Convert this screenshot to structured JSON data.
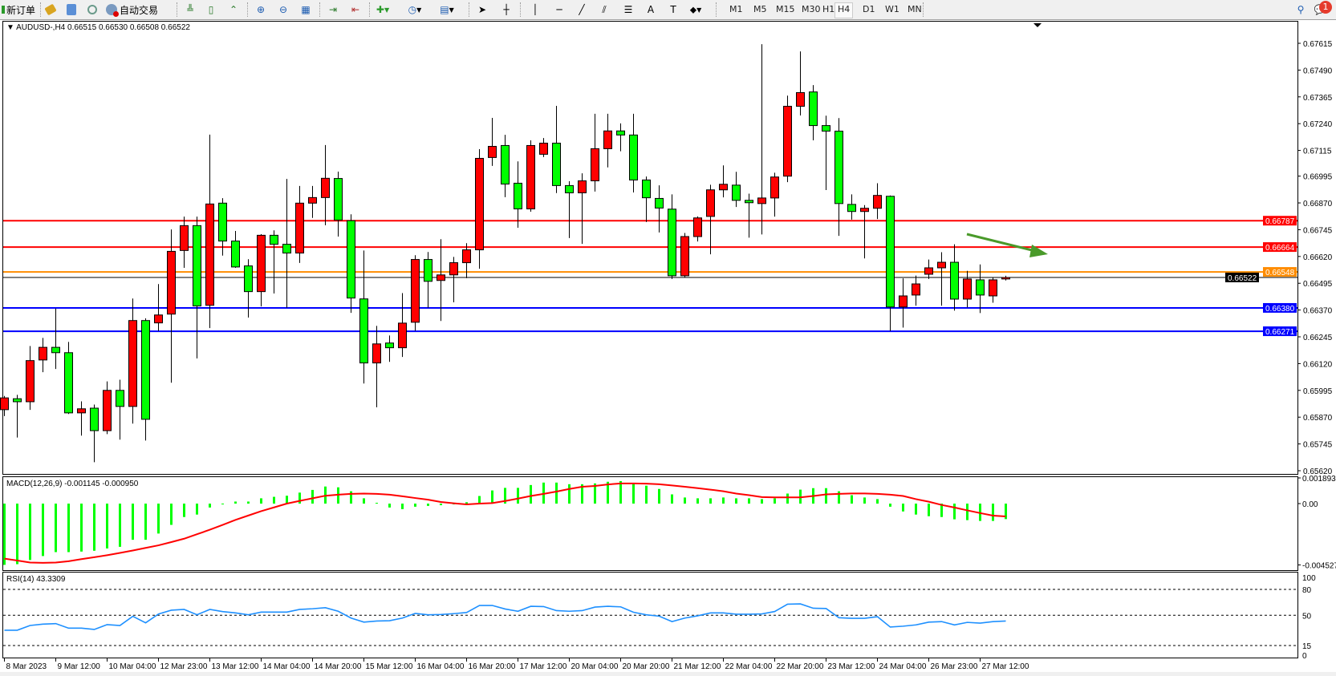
{
  "toolbar": {
    "new_order_label": "新订单",
    "auto_trading_label": "自动交易",
    "icons": [
      "new-order-icon",
      "market-watch-icon",
      "data-window-icon",
      "navigator-icon",
      "signals-icon",
      "auto-trading-icon",
      "bar-chart-icon",
      "candlestick-icon",
      "line-chart-icon",
      "zoom-in-icon",
      "zoom-out-icon",
      "tile-windows-icon",
      "auto-scroll-icon",
      "chart-shift-icon",
      "indicators-icon",
      "periods-icon",
      "templates-icon",
      "cursor-icon",
      "crosshair-icon",
      "vertical-line-icon",
      "horizontal-line-icon",
      "trendline-icon",
      "equidistant-channel-icon",
      "fibonacci-icon",
      "text-icon",
      "text-label-icon",
      "arrows-icon"
    ],
    "timeframes": [
      "M1",
      "M5",
      "M15",
      "M30",
      "H1",
      "H4",
      "D1",
      "W1",
      "MN"
    ],
    "active_timeframe": "H4",
    "notification_count": "1"
  },
  "main_panel": {
    "title": "AUDUSD-,H4  0.66515 0.66530 0.66508 0.66522",
    "price_ticks": [
      "0.67615",
      "0.67490",
      "0.67365",
      "0.67240",
      "0.67115",
      "0.66995",
      "0.66870",
      "0.66745",
      "0.66620",
      "0.66495",
      "0.66370",
      "0.66245",
      "0.66120",
      "0.65995",
      "0.65870",
      "0.65745",
      "0.65620"
    ],
    "horizontal_lines": [
      {
        "price": 0.66787,
        "label": "0.66787",
        "color": "#ff0000"
      },
      {
        "price": 0.66664,
        "label": "0.66664",
        "color": "#ff0000"
      },
      {
        "price": 0.66548,
        "label": "0.66548",
        "color": "#ff8c00"
      },
      {
        "price": 0.6638,
        "label": "0.66380",
        "color": "#0000ff"
      },
      {
        "price": 0.66271,
        "label": "0.66271",
        "color": "#0000ff"
      }
    ],
    "bid_line": {
      "price": 0.66522,
      "label": "0.66522",
      "color": "#000000"
    },
    "arrow_color": "#4a9a2a",
    "bull_color": "#ff0000",
    "bear_color": "#00ff00"
  },
  "macd_panel": {
    "title": "MACD(12,26,9) -0.001145 -0.000950",
    "ticks": [
      "0.001893",
      "0.00",
      "-0.004527"
    ],
    "histogram_color": "#00ff00",
    "signal_color": "#ff0000"
  },
  "rsi_panel": {
    "title": "RSI(14) 43.3309",
    "ticks": [
      "100",
      "80",
      "50",
      "15",
      "0"
    ],
    "levels": [
      80,
      50,
      15
    ],
    "line_color": "#1e90ff"
  },
  "time_labels": [
    "8 Mar 2023",
    "9 Mar 12:00",
    "10 Mar 04:00",
    "12 Mar 23:00",
    "13 Mar 12:00",
    "14 Mar 04:00",
    "14 Mar 20:00",
    "15 Mar 12:00",
    "16 Mar 04:00",
    "16 Mar 20:00",
    "17 Mar 12:00",
    "20 Mar 04:00",
    "20 Mar 20:00",
    "21 Mar 12:00",
    "22 Mar 04:00",
    "22 Mar 20:00",
    "23 Mar 12:00",
    "24 Mar 04:00",
    "26 Mar 23:00",
    "27 Mar 12:00"
  ],
  "chart_data": {
    "type": "candlestick",
    "symbol": "AUDUSD-",
    "timeframe": "H4",
    "ylim": [
      0.6562,
      0.67615
    ],
    "ohlc": [
      [
        0.65905,
        0.65969,
        0.65875,
        0.6596
      ],
      [
        0.65956,
        0.65974,
        0.65775,
        0.65942
      ],
      [
        0.65942,
        0.66202,
        0.65904,
        0.66134
      ],
      [
        0.66137,
        0.6624,
        0.6608,
        0.66196
      ],
      [
        0.66196,
        0.66377,
        0.66095,
        0.66171
      ],
      [
        0.66171,
        0.66221,
        0.65885,
        0.6589
      ],
      [
        0.6589,
        0.65944,
        0.65784,
        0.65909
      ],
      [
        0.65912,
        0.65929,
        0.6566,
        0.65807
      ],
      [
        0.65807,
        0.66037,
        0.65791,
        0.65995
      ],
      [
        0.65995,
        0.66045,
        0.65765,
        0.6592
      ],
      [
        0.6592,
        0.66424,
        0.6584,
        0.66321
      ],
      [
        0.66321,
        0.66331,
        0.65761,
        0.6586
      ],
      [
        0.6631,
        0.66491,
        0.66272,
        0.66347
      ],
      [
        0.66351,
        0.66746,
        0.66031,
        0.66644
      ],
      [
        0.66648,
        0.66806,
        0.66567,
        0.66764
      ],
      [
        0.66764,
        0.66806,
        0.66144,
        0.66389
      ],
      [
        0.66392,
        0.67189,
        0.66286,
        0.66865
      ],
      [
        0.66869,
        0.66892,
        0.66624,
        0.66692
      ],
      [
        0.66692,
        0.66739,
        0.66567,
        0.66571
      ],
      [
        0.66576,
        0.66607,
        0.66335,
        0.66456
      ],
      [
        0.66456,
        0.66724,
        0.66387,
        0.66719
      ],
      [
        0.66719,
        0.66742,
        0.66447,
        0.66677
      ],
      [
        0.66677,
        0.66982,
        0.66381,
        0.66636
      ],
      [
        0.66636,
        0.66949,
        0.6659,
        0.66869
      ],
      [
        0.66869,
        0.66949,
        0.668,
        0.66895
      ],
      [
        0.66895,
        0.6714,
        0.66766,
        0.66985
      ],
      [
        0.66984,
        0.67016,
        0.66713,
        0.6679
      ],
      [
        0.66787,
        0.66817,
        0.66357,
        0.66426
      ],
      [
        0.66422,
        0.66648,
        0.66027,
        0.66123
      ],
      [
        0.66123,
        0.66296,
        0.65916,
        0.66212
      ],
      [
        0.66216,
        0.66251,
        0.66128,
        0.66194
      ],
      [
        0.66194,
        0.66449,
        0.66151,
        0.66309
      ],
      [
        0.66313,
        0.66626,
        0.66273,
        0.66606
      ],
      [
        0.66606,
        0.66641,
        0.66381,
        0.66504
      ],
      [
        0.66508,
        0.66701,
        0.66319,
        0.66534
      ],
      [
        0.66534,
        0.66618,
        0.66406,
        0.66591
      ],
      [
        0.66591,
        0.66682,
        0.66519,
        0.66651
      ],
      [
        0.66651,
        0.67121,
        0.66563,
        0.67078
      ],
      [
        0.67082,
        0.67267,
        0.67043,
        0.67134
      ],
      [
        0.67138,
        0.67188,
        0.66897,
        0.66958
      ],
      [
        0.66962,
        0.67064,
        0.66754,
        0.66842
      ],
      [
        0.66842,
        0.67162,
        0.66829,
        0.67138
      ],
      [
        0.67097,
        0.67173,
        0.67084,
        0.67149
      ],
      [
        0.67149,
        0.67323,
        0.66916,
        0.66951
      ],
      [
        0.66951,
        0.66971,
        0.66706,
        0.66917
      ],
      [
        0.66917,
        0.67008,
        0.66679,
        0.66973
      ],
      [
        0.66973,
        0.67286,
        0.66923,
        0.67123
      ],
      [
        0.67123,
        0.67286,
        0.67036,
        0.67206
      ],
      [
        0.67206,
        0.67241,
        0.67111,
        0.67187
      ],
      [
        0.67187,
        0.67286,
        0.66919,
        0.66977
      ],
      [
        0.66977,
        0.66993,
        0.66781,
        0.66894
      ],
      [
        0.66891,
        0.66952,
        0.66732,
        0.66846
      ],
      [
        0.66841,
        0.6691,
        0.66515,
        0.6653
      ],
      [
        0.6653,
        0.6673,
        0.6652,
        0.66713
      ],
      [
        0.66713,
        0.66807,
        0.6669,
        0.668
      ],
      [
        0.66807,
        0.66955,
        0.6663,
        0.66931
      ],
      [
        0.66931,
        0.67045,
        0.66896,
        0.66957
      ],
      [
        0.66953,
        0.67015,
        0.66851,
        0.66882
      ],
      [
        0.66882,
        0.66913,
        0.66708,
        0.66871
      ],
      [
        0.66867,
        0.67611,
        0.66723,
        0.66893
      ],
      [
        0.66893,
        0.67011,
        0.66806,
        0.66991
      ],
      [
        0.66995,
        0.67371,
        0.66967,
        0.67321
      ],
      [
        0.67321,
        0.67577,
        0.67278,
        0.67385
      ],
      [
        0.67388,
        0.6742,
        0.67162,
        0.67231
      ],
      [
        0.67231,
        0.67277,
        0.6693,
        0.67205
      ],
      [
        0.67205,
        0.67266,
        0.66716,
        0.66867
      ],
      [
        0.66863,
        0.6691,
        0.66792,
        0.6683
      ],
      [
        0.6683,
        0.6686,
        0.66611,
        0.66845
      ],
      [
        0.66845,
        0.66962,
        0.66795,
        0.66905
      ],
      [
        0.66901,
        0.66905,
        0.66272,
        0.66384
      ],
      [
        0.66384,
        0.66518,
        0.66288,
        0.66436
      ],
      [
        0.6644,
        0.66531,
        0.6639,
        0.66492
      ],
      [
        0.66537,
        0.66606,
        0.66515,
        0.66567
      ],
      [
        0.66567,
        0.6664,
        0.6639,
        0.66593
      ],
      [
        0.66593,
        0.66677,
        0.66367,
        0.66421
      ],
      [
        0.66421,
        0.66553,
        0.66382,
        0.66515
      ],
      [
        0.66511,
        0.66583,
        0.66356,
        0.6644
      ],
      [
        0.66436,
        0.66523,
        0.66404,
        0.66511
      ],
      [
        0.66515,
        0.6653,
        0.66508,
        0.66522
      ]
    ],
    "macd_histogram": [
      -0.00452,
      -0.00447,
      -0.00416,
      -0.00387,
      -0.00358,
      -0.00358,
      -0.00354,
      -0.00348,
      -0.00331,
      -0.00319,
      -0.00267,
      -0.00267,
      -0.00221,
      -0.00157,
      -0.00099,
      -0.00081,
      -0.00029,
      0.0,
      0.00015,
      0.00015,
      0.00039,
      0.0005,
      0.00058,
      0.00081,
      0.00101,
      0.00126,
      0.0012,
      0.00091,
      0.00039,
      6e-05,
      -0.00029,
      -0.00041,
      -0.00023,
      -0.00017,
      -0.00012,
      -5e-05,
      0.0001,
      0.00056,
      0.00097,
      0.00116,
      0.00116,
      0.00137,
      0.00155,
      0.00155,
      0.00143,
      0.00143,
      0.00149,
      0.00161,
      0.00166,
      0.00149,
      0.00132,
      0.00108,
      0.00068,
      0.00045,
      0.00039,
      0.00039,
      0.00045,
      0.00039,
      0.00039,
      0.00033,
      0.00039,
      0.00074,
      0.00103,
      0.00114,
      0.00114,
      0.00091,
      0.00062,
      0.00045,
      0.00033,
      -0.00023,
      -0.00058,
      -0.00081,
      -0.00093,
      -0.00099,
      -0.00116,
      -0.00122,
      -0.00128,
      -0.00128,
      -0.001145
    ],
    "macd_signal": [
      -0.00406,
      -0.0042,
      -0.00435,
      -0.00437,
      -0.00435,
      -0.00425,
      -0.0041,
      -0.00396,
      -0.00381,
      -0.00364,
      -0.00346,
      -0.00327,
      -0.00308,
      -0.00284,
      -0.00259,
      -0.00226,
      -0.00193,
      -0.00157,
      -0.0012,
      -0.00088,
      -0.00056,
      -0.00028,
      0.0,
      0.0002,
      0.00039,
      0.00058,
      0.00066,
      0.00072,
      0.00074,
      0.00072,
      0.00066,
      0.00054,
      0.00041,
      0.00029,
      0.00012,
      2e-05,
      -6e-05,
      0.0,
      4e-05,
      0.00019,
      0.00037,
      0.00056,
      0.00072,
      0.00089,
      0.00108,
      0.00124,
      0.0013,
      0.00141,
      0.00149,
      0.00149,
      0.00147,
      0.00143,
      0.00134,
      0.00124,
      0.00114,
      0.00103,
      0.00091,
      0.00074,
      0.00062,
      0.00048,
      0.00046,
      0.00046,
      0.00046,
      0.00056,
      0.00068,
      0.00072,
      0.00075,
      0.00075,
      0.00072,
      0.00066,
      0.00056,
      0.00033,
      0.00014,
      -0.0001,
      -0.00029,
      -0.0005,
      -0.0007,
      -0.00089,
      -0.00095
    ],
    "macd_range": [
      -0.004527,
      0.001893
    ],
    "rsi": [
      32.7,
      32.7,
      38.2,
      39.8,
      40.4,
      35.1,
      35.1,
      33.6,
      39.2,
      38.2,
      48.8,
      41.3,
      51.5,
      55.9,
      56.8,
      50.6,
      56.8,
      54.3,
      52.8,
      50.6,
      53.7,
      53.7,
      53.7,
      56.8,
      57.6,
      58.8,
      54.7,
      46.8,
      42.1,
      43.4,
      43.7,
      46.8,
      52.2,
      50.6,
      50.9,
      51.9,
      53.2,
      61.4,
      61.4,
      57.3,
      54.7,
      60.4,
      60.1,
      55.4,
      54.7,
      55.4,
      59.5,
      60.4,
      59.8,
      53.5,
      50.6,
      49.0,
      42.7,
      46.8,
      49.4,
      52.8,
      52.8,
      51.3,
      51.3,
      51.6,
      54.4,
      62.9,
      63.2,
      58.2,
      57.9,
      47.2,
      46.5,
      46.5,
      48.4,
      36.4,
      37.4,
      38.9,
      42.1,
      42.7,
      38.9,
      41.8,
      40.9,
      42.7,
      43.3309
    ],
    "rsi_range": [
      0,
      100
    ]
  }
}
